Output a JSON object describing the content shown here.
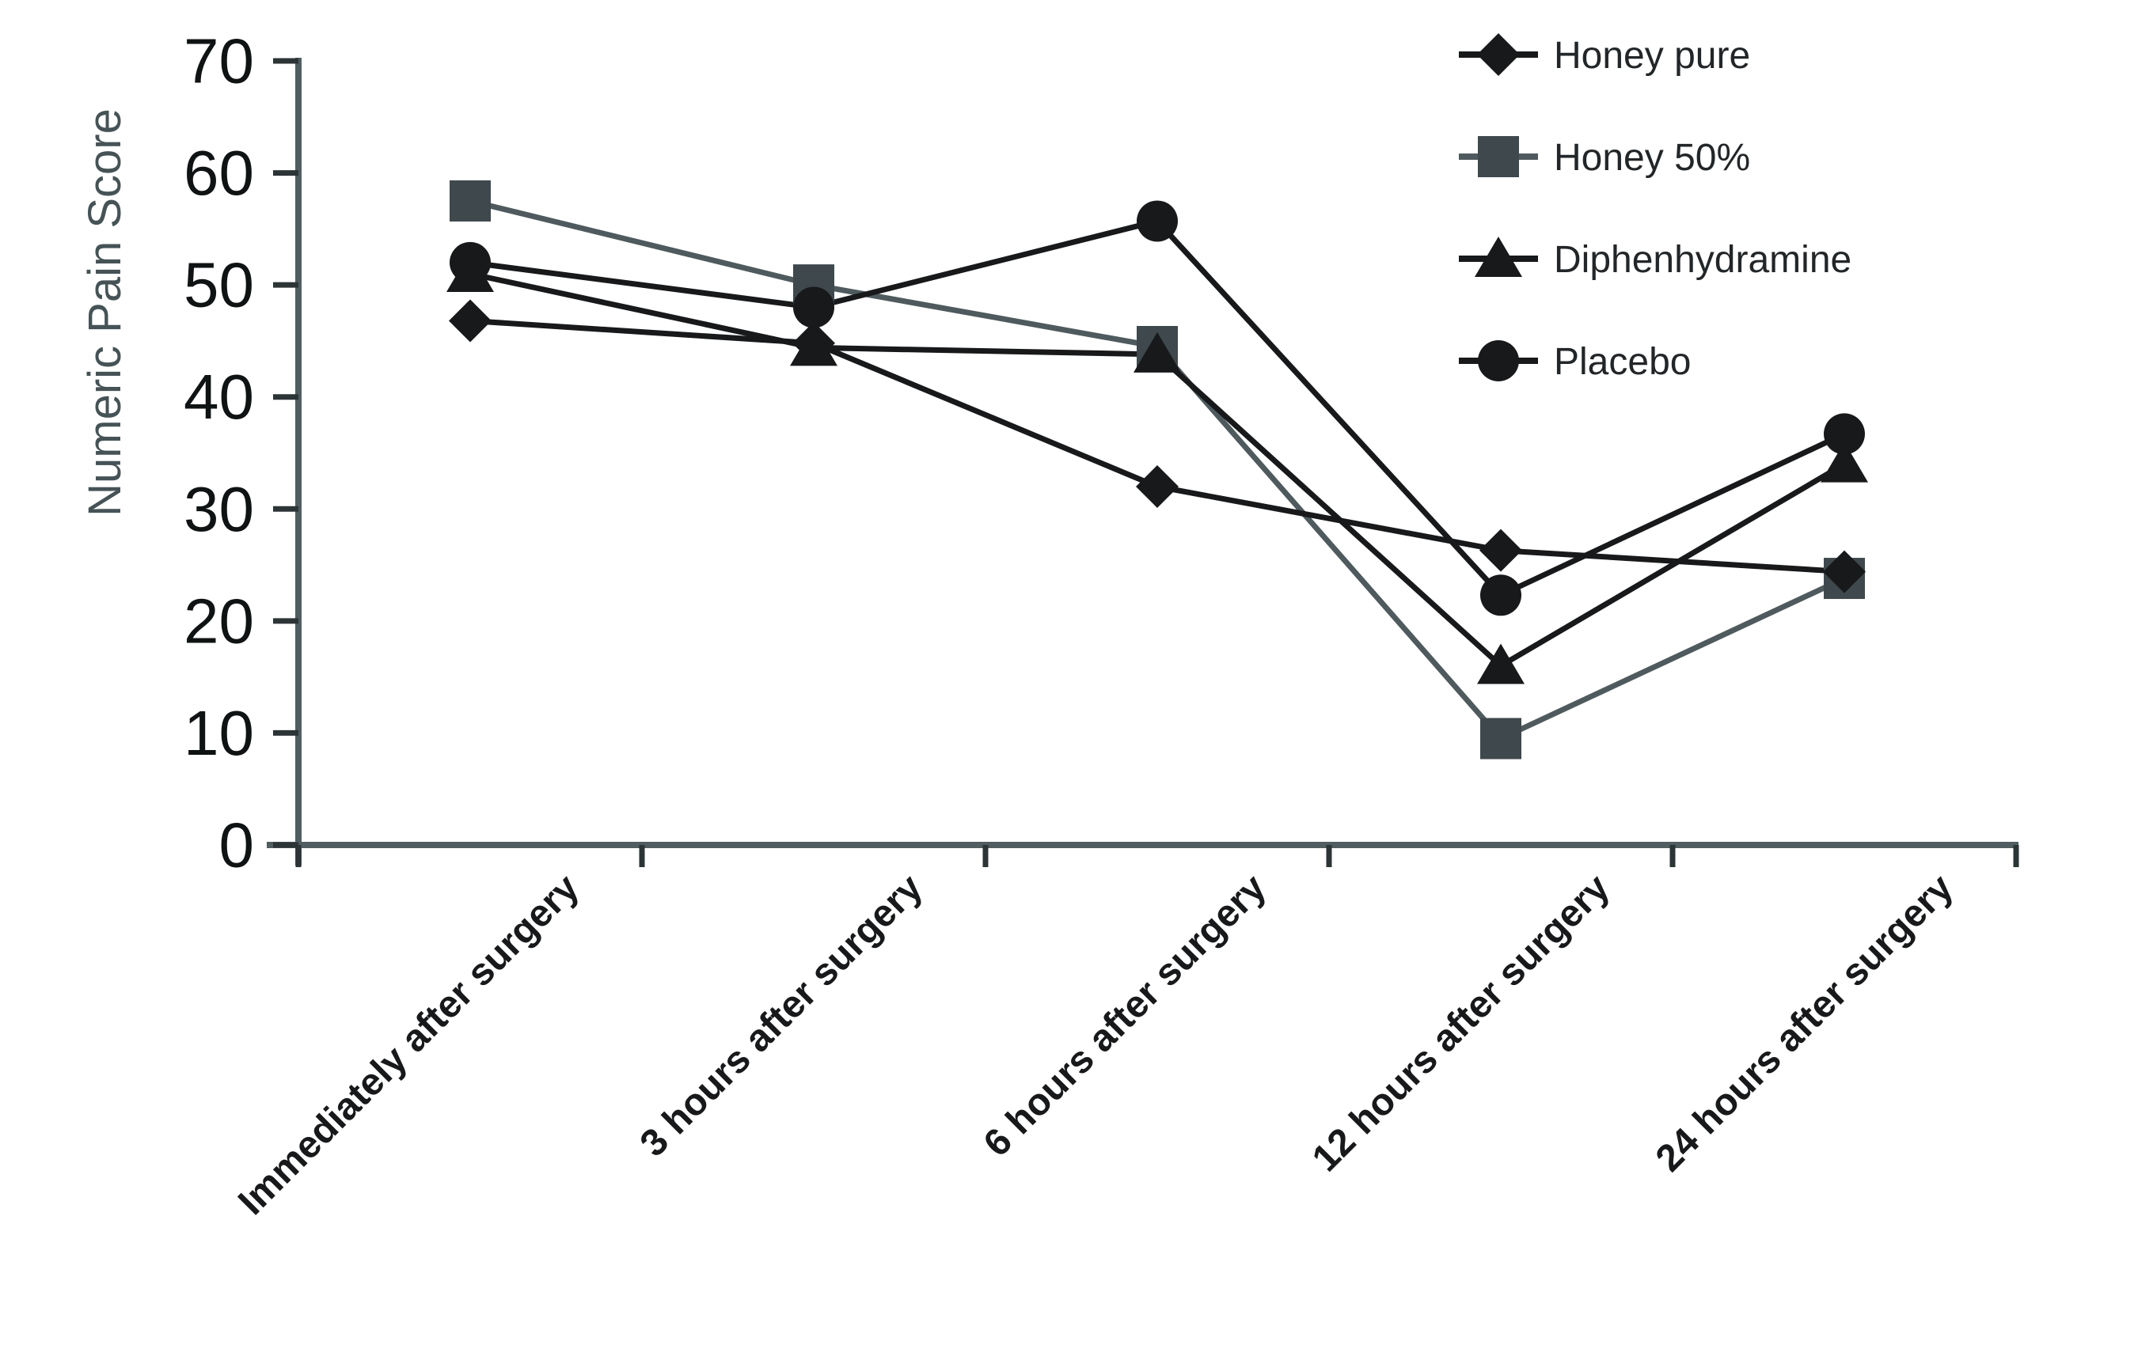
{
  "page": {
    "background": "#ffffff"
  },
  "colors": {
    "axis": "#505d61",
    "tick_label": "#101314",
    "axis_title": "#465356",
    "x_label": "#17191b",
    "legend_text": "#232628",
    "dark_series": "#17191b",
    "gray_series_line": "#4f5a5e",
    "gray_series_fill": "#3f484c"
  },
  "chart_data": {
    "type": "line",
    "title": "",
    "xlabel": "",
    "ylabel": "Numeric Pain Score",
    "ylim": [
      0,
      70
    ],
    "y_ticks": [
      0,
      10,
      20,
      30,
      40,
      50,
      60,
      70
    ],
    "grid": false,
    "legend_position": "top-right",
    "categories": [
      "Immediately after  surgery",
      "3 hours after surgery",
      "6 hours after surgery",
      "12 hours after surgery",
      "24 hours after surgery"
    ],
    "series": [
      {
        "name": "Honey pure",
        "marker": "diamond",
        "line_color": "#17191b",
        "fill_color": "#17191b",
        "values": [
          46.8,
          44.8,
          32,
          26.3,
          24.4
        ]
      },
      {
        "name": "Honey 50%",
        "marker": "square",
        "line_color": "#4f5a5e",
        "fill_color": "#3f484c",
        "values": [
          57.5,
          50,
          44.5,
          9.5,
          23.8
        ]
      },
      {
        "name": "Diphenhydramine",
        "marker": "triangle",
        "line_color": "#17191b",
        "fill_color": "#17191b",
        "values": [
          51,
          44.4,
          43.8,
          16,
          34
        ]
      },
      {
        "name": "Placebo",
        "marker": "circle",
        "line_color": "#17191b",
        "fill_color": "#17191b",
        "values": [
          52,
          48,
          55.7,
          22.3,
          36.7
        ]
      }
    ]
  }
}
